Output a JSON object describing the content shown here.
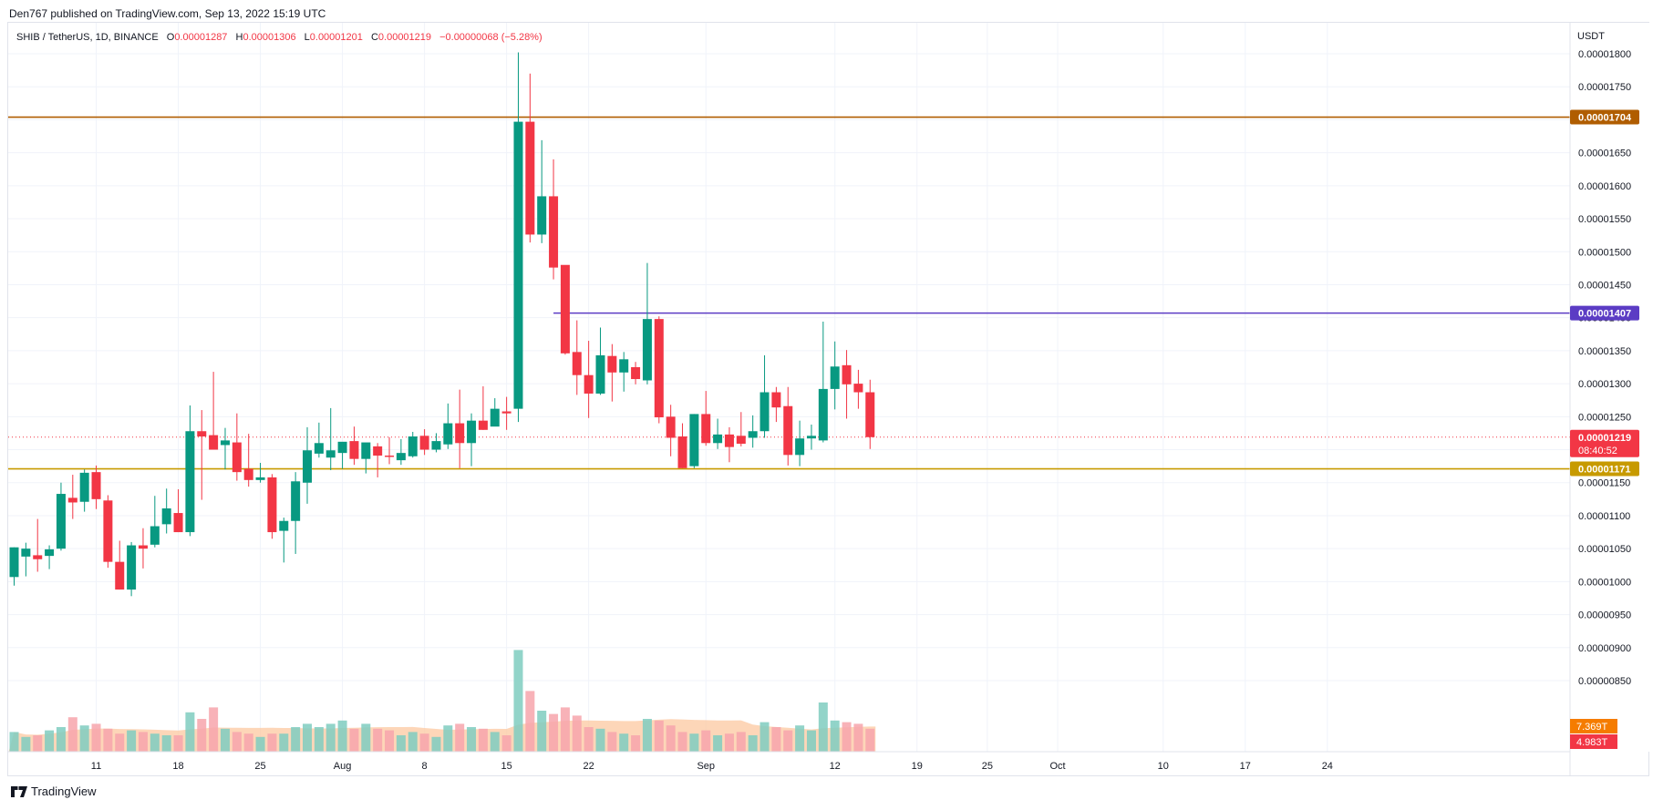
{
  "header": {
    "published": "Den767 published on TradingView.com, Sep 13, 2022 15:19 UTC"
  },
  "legend": {
    "symbol": "SHIB / TetherUS, 1D, BINANCE",
    "o_label": "O",
    "o_value": "0.00001287",
    "h_label": "H",
    "h_value": "0.00001306",
    "l_label": "L",
    "l_value": "0.00001201",
    "c_label": "C",
    "c_value": "0.00001219",
    "change": "−0.00000068 (−5.28%)"
  },
  "footer": {
    "brand": "TradingView"
  },
  "colors": {
    "up": "#089981",
    "down": "#f23645",
    "up_vol": "#7fcdc0",
    "down_vol": "#f7a5ab",
    "vol_ma_fill": "#fcc8a0",
    "resistance_high": "#b05d00",
    "resistance_mid": "#5b3cc4",
    "support": "#c79a00"
  },
  "chart_data": {
    "type": "candlestick",
    "title": "SHIB / TetherUS, 1D, BINANCE",
    "y_axis_title": "USDT",
    "y_ticks": [
      "0.00001800",
      "0.00001750",
      "0.00001700",
      "0.00001650",
      "0.00001600",
      "0.00001550",
      "0.00001500",
      "0.00001450",
      "0.00001400",
      "0.00001350",
      "0.00001300",
      "0.00001250",
      "0.00001200",
      "0.00001150",
      "0.00001100",
      "0.00001050",
      "0.00001000",
      "0.00000950",
      "0.00000900",
      "0.00000850"
    ],
    "ylim": [
      8.5e-06,
      1.8e-05
    ],
    "x_ticks": [
      {
        "label": "11",
        "idx": 7
      },
      {
        "label": "18",
        "idx": 14
      },
      {
        "label": "25",
        "idx": 21
      },
      {
        "label": "Aug",
        "idx": 28
      },
      {
        "label": "8",
        "idx": 35
      },
      {
        "label": "15",
        "idx": 42
      },
      {
        "label": "22",
        "idx": 49
      },
      {
        "label": "Sep",
        "idx": 59
      },
      {
        "label": "12",
        "idx": 70
      },
      {
        "label": "19",
        "idx": 77
      },
      {
        "label": "25",
        "idx": 83
      },
      {
        "label": "Oct",
        "idx": 89
      },
      {
        "label": "10",
        "idx": 98
      },
      {
        "label": "17",
        "idx": 105
      },
      {
        "label": "24",
        "idx": 112
      }
    ],
    "horizontal_lines": [
      {
        "label": "0.00001704",
        "value": 1.704e-05,
        "color": "#b05d00",
        "start_idx": 0
      },
      {
        "label": "0.00001407",
        "value": 1.407e-05,
        "color": "#5b3cc4",
        "start_idx": 46
      },
      {
        "label": "0.00001171",
        "value": 1.171e-05,
        "color": "#c79a00",
        "start_idx": 0
      }
    ],
    "last_price": {
      "label": "0.00001219",
      "value": 1.219e-05,
      "countdown": "08:40:52"
    },
    "volume_labels": [
      {
        "label": "7.369T",
        "color": "#f57c00"
      },
      {
        "label": "4.983T",
        "color": "#f23645"
      }
    ],
    "candles": [
      [
        1.007e-05,
        1.052e-05,
        9.94e-06,
        1.052e-05,
        1.2
      ],
      [
        1.038e-05,
        1.059e-05,
        1.008e-05,
        1.05e-05,
        0.9
      ],
      [
        1.04e-05,
        1.095e-05,
        1.015e-05,
        1.034e-05,
        1.0
      ],
      [
        1.039e-05,
        1.055e-05,
        1.019e-05,
        1.049e-05,
        1.3
      ],
      [
        1.05e-05,
        1.15e-05,
        1.047e-05,
        1.133e-05,
        1.5
      ],
      [
        1.127e-05,
        1.162e-05,
        1.095e-05,
        1.12e-05,
        2.1
      ],
      [
        1.121e-05,
        1.17e-05,
        1.106e-05,
        1.165e-05,
        1.6
      ],
      [
        1.166e-05,
        1.176e-05,
        1.11e-05,
        1.125e-05,
        1.7
      ],
      [
        1.123e-05,
        1.131e-05,
        1.021e-05,
        1.03e-05,
        1.4
      ],
      [
        1.03e-05,
        1.062e-05,
        9.88e-06,
        9.88e-06,
        1.1
      ],
      [
        9.88e-06,
        1.06e-05,
        9.78e-06,
        1.055e-05,
        1.3
      ],
      [
        1.055e-05,
        1.081e-05,
        1.02e-05,
        1.05e-05,
        1.2
      ],
      [
        1.056e-05,
        1.13e-05,
        1.052e-05,
        1.084e-05,
        1.1
      ],
      [
        1.087e-05,
        1.141e-05,
        1.073e-05,
        1.111e-05,
        1.0
      ],
      [
        1.104e-05,
        1.14e-05,
        1.075e-05,
        1.075e-05,
        1.0
      ],
      [
        1.075e-05,
        1.267e-05,
        1.069e-05,
        1.228e-05,
        2.4
      ],
      [
        1.228e-05,
        1.26e-05,
        1.124e-05,
        1.22e-05,
        2.0
      ],
      [
        1.222e-05,
        1.318e-05,
        1.201e-05,
        1.2e-05,
        2.7
      ],
      [
        1.207e-05,
        1.233e-05,
        1.17e-05,
        1.214e-05,
        1.4
      ],
      [
        1.211e-05,
        1.255e-05,
        1.153e-05,
        1.166e-05,
        1.2
      ],
      [
        1.171e-05,
        1.224e-05,
        1.144e-05,
        1.154e-05,
        1.1
      ],
      [
        1.154e-05,
        1.18e-05,
        1.15e-05,
        1.158e-05,
        0.9
      ],
      [
        1.158e-05,
        1.163e-05,
        1.065e-05,
        1.075e-05,
        1.1
      ],
      [
        1.077e-05,
        1.097e-05,
        1.029e-05,
        1.092e-05,
        1.1
      ],
      [
        1.092e-05,
        1.166e-05,
        1.042e-05,
        1.152e-05,
        1.5
      ],
      [
        1.15e-05,
        1.234e-05,
        1.118e-05,
        1.199e-05,
        1.7
      ],
      [
        1.194e-05,
        1.241e-05,
        1.188e-05,
        1.21e-05,
        1.5
      ],
      [
        1.188e-05,
        1.263e-05,
        1.169e-05,
        1.199e-05,
        1.7
      ],
      [
        1.195e-05,
        1.21e-05,
        1.171e-05,
        1.212e-05,
        1.9
      ],
      [
        1.213e-05,
        1.235e-05,
        1.177e-05,
        1.186e-05,
        1.4
      ],
      [
        1.186e-05,
        1.209e-05,
        1.164e-05,
        1.211e-05,
        1.7
      ],
      [
        1.205e-05,
        1.21e-05,
        1.158e-05,
        1.191e-05,
        1.4
      ],
      [
        1.191e-05,
        1.219e-05,
        1.178e-05,
        1.189e-05,
        1.3
      ],
      [
        1.184e-05,
        1.216e-05,
        1.177e-05,
        1.195e-05,
        1.0
      ],
      [
        1.19e-05,
        1.227e-05,
        1.188e-05,
        1.22e-05,
        1.2
      ],
      [
        1.221e-05,
        1.231e-05,
        1.192e-05,
        1.2e-05,
        1.1
      ],
      [
        1.2e-05,
        1.225e-05,
        1.196e-05,
        1.213e-05,
        0.9
      ],
      [
        1.208e-05,
        1.27e-05,
        1.201e-05,
        1.24e-05,
        1.6
      ],
      [
        1.24e-05,
        1.291e-05,
        1.172e-05,
        1.21e-05,
        1.7
      ],
      [
        1.21e-05,
        1.255e-05,
        1.175e-05,
        1.244e-05,
        1.5
      ],
      [
        1.244e-05,
        1.296e-05,
        1.23e-05,
        1.23e-05,
        1.4
      ],
      [
        1.235e-05,
        1.278e-05,
        1.236e-05,
        1.262e-05,
        1.2
      ],
      [
        1.258e-05,
        1.28e-05,
        1.23e-05,
        1.255e-05,
        1.0
      ],
      [
        1.262e-05,
        1.802e-05,
        1.242e-05,
        1.697e-05,
        6.2
      ],
      [
        1.697e-05,
        1.77e-05,
        1.514e-05,
        1.526e-05,
        3.7
      ],
      [
        1.526e-05,
        1.669e-05,
        1.513e-05,
        1.584e-05,
        2.5
      ],
      [
        1.584e-05,
        1.64e-05,
        1.458e-05,
        1.476e-05,
        2.3
      ],
      [
        1.48e-05,
        1.478e-05,
        1.344e-05,
        1.346e-05,
        2.7
      ],
      [
        1.348e-05,
        1.396e-05,
        1.283e-05,
        1.313e-05,
        2.2
      ],
      [
        1.313e-05,
        1.365e-05,
        1.248e-05,
        1.285e-05,
        1.5
      ],
      [
        1.285e-05,
        1.385e-05,
        1.283e-05,
        1.343e-05,
        1.4
      ],
      [
        1.342e-05,
        1.36e-05,
        1.273e-05,
        1.317e-05,
        1.2
      ],
      [
        1.317e-05,
        1.348e-05,
        1.288e-05,
        1.337e-05,
        1.1
      ],
      [
        1.325e-05,
        1.333e-05,
        1.299e-05,
        1.307e-05,
        1.0
      ],
      [
        1.305e-05,
        1.483e-05,
        1.299e-05,
        1.398e-05,
        2.0
      ],
      [
        1.398e-05,
        1.402e-05,
        1.24e-05,
        1.249e-05,
        1.9
      ],
      [
        1.25e-05,
        1.268e-05,
        1.19e-05,
        1.218e-05,
        1.6
      ],
      [
        1.22e-05,
        1.24e-05,
        1.172e-05,
        1.172e-05,
        1.2
      ],
      [
        1.175e-05,
        1.254e-05,
        1.172e-05,
        1.254e-05,
        1.1
      ],
      [
        1.254e-05,
        1.289e-05,
        1.206e-05,
        1.21e-05,
        1.3
      ],
      [
        1.21e-05,
        1.247e-05,
        1.201e-05,
        1.223e-05,
        1.0
      ],
      [
        1.223e-05,
        1.234e-05,
        1.181e-05,
        1.204e-05,
        1.1
      ],
      [
        1.221e-05,
        1.257e-05,
        1.205e-05,
        1.209e-05,
        1.2
      ],
      [
        1.218e-05,
        1.252e-05,
        1.203e-05,
        1.228e-05,
        1.0
      ],
      [
        1.228e-05,
        1.343e-05,
        1.218e-05,
        1.287e-05,
        1.8
      ],
      [
        1.287e-05,
        1.295e-05,
        1.242e-05,
        1.264e-05,
        1.5
      ],
      [
        1.266e-05,
        1.295e-05,
        1.176e-05,
        1.192e-05,
        1.3
      ],
      [
        1.192e-05,
        1.244e-05,
        1.175e-05,
        1.217e-05,
        1.6
      ],
      [
        1.217e-05,
        1.238e-05,
        1.2e-05,
        1.221e-05,
        1.3
      ],
      [
        1.214e-05,
        1.394e-05,
        1.211e-05,
        1.292e-05,
        3.0
      ],
      [
        1.292e-05,
        1.364e-05,
        1.261e-05,
        1.326e-05,
        1.9
      ],
      [
        1.328e-05,
        1.351e-05,
        1.247e-05,
        1.299e-05,
        1.8
      ],
      [
        1.3e-05,
        1.321e-05,
        1.262e-05,
        1.287e-05,
        1.7
      ],
      [
        1.287e-05,
        1.306e-05,
        1.201e-05,
        1.219e-05,
        1.4
      ]
    ]
  }
}
